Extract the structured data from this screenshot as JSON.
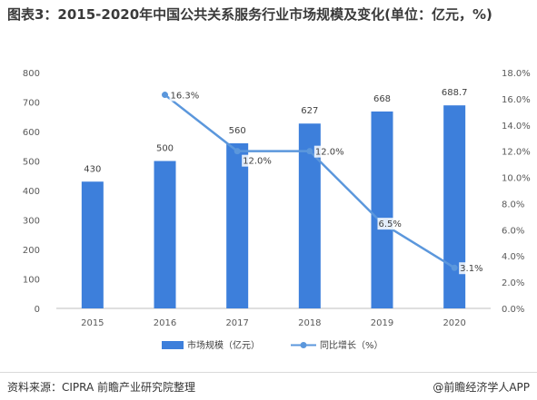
{
  "title": "图表3：2015-2020年中国公共关系服务行业市场规模及变化(单位：亿元，%)",
  "source": "资料来源：CIPRA 前瞻产业研究院整理",
  "brand": "@前瞻经济学人APP",
  "colors": {
    "bar": "#3d7fdb",
    "line": "#5b97dc"
  },
  "chart_data": {
    "type": "bar",
    "categories": [
      "2015",
      "2016",
      "2017",
      "2018",
      "2019",
      "2020"
    ],
    "series": [
      {
        "name": "市场规模（亿元）",
        "type": "bar",
        "axis": "left",
        "values": [
          430,
          500,
          560,
          627,
          668,
          688.7
        ],
        "labels": [
          "430",
          "500",
          "560",
          "627",
          "668",
          "688.7"
        ]
      },
      {
        "name": "同比增长（%）",
        "type": "line",
        "axis": "right",
        "values": [
          null,
          16.3,
          12.0,
          12.0,
          6.5,
          3.1
        ],
        "labels": [
          "",
          "16.3%",
          "12.0%",
          "12.0%",
          "6.5%",
          "3.1%"
        ]
      }
    ],
    "yleft": {
      "min": 0,
      "max": 800,
      "step": 100,
      "ticks": [
        "0",
        "100",
        "200",
        "300",
        "400",
        "500",
        "600",
        "700",
        "800"
      ]
    },
    "yright": {
      "min": 0,
      "max": 18,
      "step": 2,
      "ticks": [
        "0.0%",
        "2.0%",
        "4.0%",
        "6.0%",
        "8.0%",
        "10.0%",
        "12.0%",
        "14.0%",
        "16.0%",
        "18.0%"
      ]
    },
    "grid": false,
    "legend_position": "bottom"
  }
}
